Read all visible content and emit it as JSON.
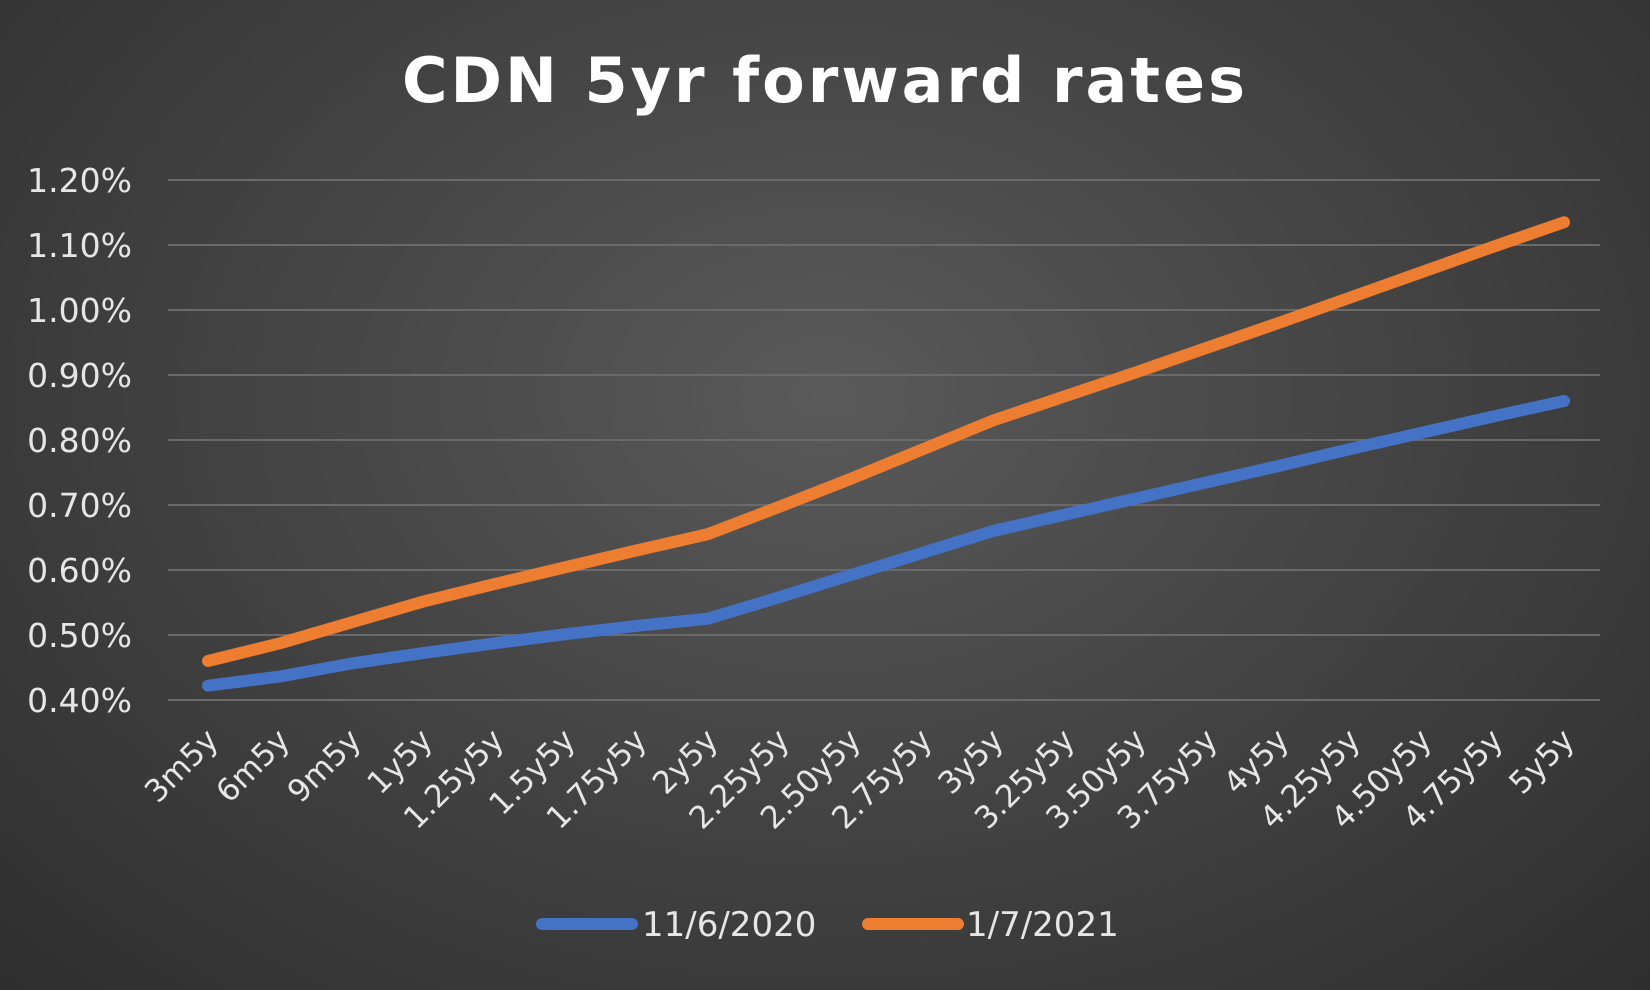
{
  "chart_data": {
    "type": "line",
    "title": "CDN 5yr forward rates",
    "xlabel": "",
    "ylabel": "",
    "categories": [
      "3m5y",
      "6m5y",
      "9m5y",
      "1y5y",
      "1.25y5y",
      "1.5y5y",
      "1.75y5y",
      "2y5y",
      "2.25y5y",
      "2.50y5y",
      "2.75y5y",
      "3y5y",
      "3.25y5y",
      "3.50y5y",
      "3.75y5y",
      "4y5y",
      "4.25y5y",
      "4.50y5y",
      "4.75y5y",
      "5y5y"
    ],
    "ylim": [
      0.4,
      1.2
    ],
    "yticks": [
      0.4,
      0.5,
      0.6,
      0.7,
      0.8,
      0.9,
      1.0,
      1.1,
      1.2
    ],
    "ytick_labels": [
      "0.40%",
      "0.50%",
      "0.60%",
      "0.70%",
      "0.80%",
      "0.90%",
      "1.00%",
      "1.10%",
      "1.20%"
    ],
    "grid": true,
    "legend_position": "bottom",
    "series": [
      {
        "name": "11/6/2020",
        "color": "#4472c4",
        "values": [
          0.422,
          0.436,
          0.456,
          0.472,
          0.487,
          0.501,
          0.514,
          0.525,
          0.558,
          0.592,
          0.626,
          0.66,
          0.685,
          0.71,
          0.735,
          0.76,
          0.786,
          0.811,
          0.836,
          0.86
        ]
      },
      {
        "name": "1/7/2021",
        "color": "#ed7d31",
        "values": [
          0.46,
          0.487,
          0.519,
          0.551,
          0.578,
          0.604,
          0.63,
          0.655,
          0.697,
          0.74,
          0.785,
          0.83,
          0.867,
          0.904,
          0.942,
          0.98,
          1.019,
          1.058,
          1.097,
          1.135
        ]
      }
    ]
  }
}
